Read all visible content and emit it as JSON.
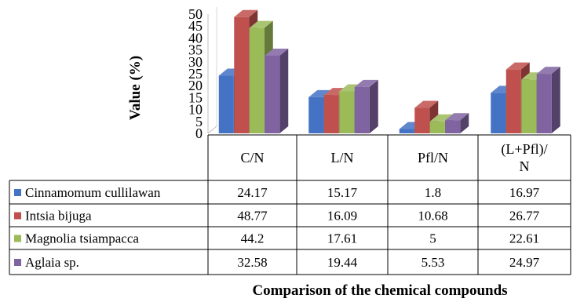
{
  "chart_data": {
    "type": "bar",
    "style": "3d-clustered-column-with-data-table",
    "categories": [
      "C/N",
      "L/N",
      "Pfl/N",
      "(L+Pfl)/\nN"
    ],
    "series": [
      {
        "name": "Cinnamomum cullilawan",
        "color": "#4472C4",
        "values": [
          24.17,
          15.17,
          1.8,
          16.97
        ],
        "labels": [
          "24.17",
          "15.17",
          "1.8",
          "16.97"
        ]
      },
      {
        "name": "Intsia bijuga",
        "color": "#C0504D",
        "values": [
          48.77,
          16.09,
          10.68,
          26.77
        ],
        "labels": [
          "48.77",
          "16.09",
          "10.68",
          "26.77"
        ]
      },
      {
        "name": "Magnolia tsiampacca",
        "color": "#9BBB59",
        "values": [
          44.2,
          17.61,
          5,
          22.61
        ],
        "labels": [
          "44.2",
          "17.61",
          "5",
          "22.61"
        ]
      },
      {
        "name": "Aglaia sp.",
        "color": "#8064A2",
        "values": [
          32.58,
          19.44,
          5.53,
          24.97
        ],
        "labels": [
          "32.58",
          "19.44",
          "5.53",
          "24.97"
        ]
      }
    ],
    "ylim": [
      0,
      50
    ],
    "yticks": [
      "0",
      "5",
      "10",
      "15",
      "20",
      "25",
      "30",
      "35",
      "40",
      "45",
      "50"
    ],
    "ylabel": "Value (%)",
    "xlabel": "Comparison of the chemical compounds",
    "legend": "data-table",
    "grid": false
  }
}
